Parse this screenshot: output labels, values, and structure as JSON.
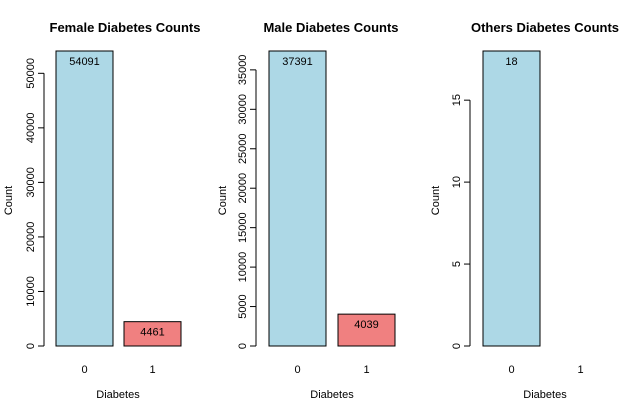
{
  "chart_data": [
    {
      "type": "bar",
      "title": "Female Diabetes Counts",
      "xlabel": "Diabetes",
      "ylabel": "Count",
      "categories": [
        "0",
        "1"
      ],
      "values": [
        54091,
        4461
      ],
      "value_labels": [
        "54091",
        "4461"
      ],
      "ylim": [
        0,
        54091
      ],
      "yticks": [
        0,
        10000,
        20000,
        30000,
        40000,
        50000
      ],
      "ytick_labels": [
        "0",
        "10000",
        "20000",
        "30000",
        "40000",
        "50000"
      ],
      "bar_colors": [
        "#add8e6",
        "#f08080"
      ],
      "grid": false,
      "legend": "none"
    },
    {
      "type": "bar",
      "title": "Male Diabetes Counts",
      "xlabel": "Diabetes",
      "ylabel": "Count",
      "categories": [
        "0",
        "1"
      ],
      "values": [
        37391,
        4039
      ],
      "value_labels": [
        "37391",
        "4039"
      ],
      "ylim": [
        0,
        37391
      ],
      "yticks": [
        0,
        5000,
        10000,
        15000,
        20000,
        25000,
        30000,
        35000
      ],
      "ytick_labels": [
        "0",
        "5000",
        "10000",
        "15000",
        "20000",
        "25000",
        "30000",
        "35000"
      ],
      "bar_colors": [
        "#add8e6",
        "#f08080"
      ],
      "grid": false,
      "legend": "none"
    },
    {
      "type": "bar",
      "title": "Others Diabetes Counts",
      "xlabel": "Diabetes",
      "ylabel": "Count",
      "categories": [
        "0",
        "1"
      ],
      "values": [
        18,
        0
      ],
      "value_labels": [
        "18",
        ""
      ],
      "ylim": [
        0,
        18
      ],
      "yticks": [
        0,
        5,
        10,
        15
      ],
      "ytick_labels": [
        "0",
        "5",
        "10",
        "15"
      ],
      "bar_colors": [
        "#add8e6",
        "#f08080"
      ],
      "grid": false,
      "legend": "none"
    }
  ]
}
